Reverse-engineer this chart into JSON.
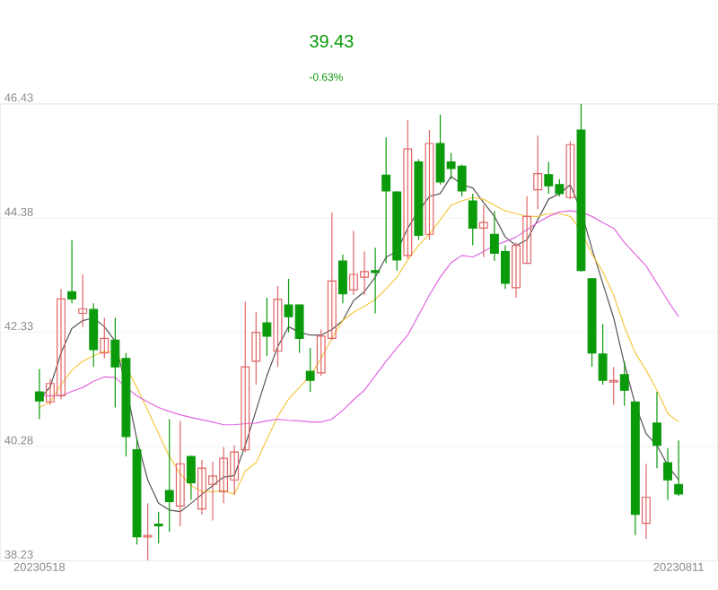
{
  "chart_data": {
    "type": "candlestick",
    "annotations": [
      "39.43",
      "-0.63%"
    ],
    "categories": [
      "20230518",
      null,
      null,
      null,
      null,
      null,
      null,
      null,
      null,
      null,
      null,
      null,
      null,
      null,
      null,
      null,
      null,
      null,
      null,
      null,
      null,
      null,
      null,
      null,
      null,
      null,
      null,
      null,
      null,
      null,
      null,
      null,
      null,
      null,
      null,
      null,
      null,
      null,
      null,
      null,
      null,
      null,
      null,
      null,
      null,
      null,
      null,
      null,
      null,
      null,
      null,
      null,
      null,
      null,
      null,
      null,
      null,
      null,
      null,
      "20230811"
    ],
    "ohlc": [
      [
        41.26,
        41.67,
        40.77,
        41.1
      ],
      [
        41.08,
        41.5,
        41.03,
        41.41
      ],
      [
        41.19,
        43.11,
        41.13,
        42.93
      ],
      [
        43.06,
        43.99,
        42.85,
        42.93
      ],
      [
        42.67,
        43.37,
        42.43,
        42.75
      ],
      [
        42.74,
        42.85,
        41.71,
        42.02
      ],
      [
        41.96,
        42.59,
        41.86,
        42.22
      ],
      [
        42.19,
        42.59,
        40.98,
        41.71
      ],
      [
        41.86,
        41.96,
        40.1,
        40.46
      ],
      [
        40.22,
        40.43,
        38.52,
        38.66
      ],
      [
        38.66,
        39.26,
        38.24,
        38.68
      ],
      [
        38.88,
        39.11,
        38.54,
        38.86
      ],
      [
        39.49,
        40.77,
        38.75,
        39.29
      ],
      [
        39.21,
        40.74,
        38.85,
        39.97
      ],
      [
        40.1,
        40.12,
        39.32,
        39.63
      ],
      [
        39.16,
        40.04,
        39.06,
        39.89
      ],
      [
        39.6,
        40.01,
        38.95,
        39.75
      ],
      [
        39.47,
        40.27,
        39.26,
        40.07
      ],
      [
        39.68,
        40.3,
        39.42,
        40.18
      ],
      [
        40.22,
        42.88,
        40.18,
        41.71
      ],
      [
        41.81,
        42.69,
        41.39,
        42.33
      ],
      [
        42.5,
        42.95,
        41.91,
        42.26
      ],
      [
        41.99,
        43.16,
        41.71,
        42.92
      ],
      [
        42.82,
        43.29,
        42.33,
        42.61
      ],
      [
        42.82,
        42.83,
        41.96,
        42.22
      ],
      [
        41.63,
        42.05,
        41.26,
        41.47
      ],
      [
        41.6,
        42.38,
        41.55,
        42.26
      ],
      [
        42.22,
        44.48,
        42.19,
        43.25
      ],
      [
        43.61,
        43.73,
        42.85,
        43.02
      ],
      [
        43.09,
        44.15,
        43.0,
        43.37
      ],
      [
        43.32,
        43.78,
        43.0,
        43.42
      ],
      [
        43.43,
        43.85,
        42.67,
        43.41
      ],
      [
        45.15,
        45.83,
        43.57,
        44.87
      ],
      [
        44.85,
        44.86,
        43.44,
        43.63
      ],
      [
        43.71,
        46.14,
        43.65,
        45.62
      ],
      [
        45.39,
        45.44,
        43.99,
        44.07
      ],
      [
        44.09,
        45.96,
        43.99,
        45.72
      ],
      [
        45.72,
        46.24,
        44.98,
        45.03
      ],
      [
        45.39,
        45.55,
        45.08,
        45.27
      ],
      [
        45.31,
        45.34,
        44.77,
        44.87
      ],
      [
        44.69,
        44.82,
        43.89,
        44.2
      ],
      [
        44.2,
        44.61,
        43.68,
        44.3
      ],
      [
        44.09,
        44.51,
        43.61,
        43.75
      ],
      [
        43.78,
        43.89,
        43.11,
        43.21
      ],
      [
        43.13,
        43.94,
        42.95,
        43.89
      ],
      [
        43.57,
        44.77,
        43.57,
        44.41
      ],
      [
        44.89,
        45.86,
        44.54,
        45.18
      ],
      [
        45.16,
        45.39,
        44.82,
        44.96
      ],
      [
        44.98,
        45.08,
        44.77,
        44.82
      ],
      [
        44.75,
        45.76,
        44.72,
        45.7
      ],
      [
        45.96,
        46.43,
        43.42,
        43.44
      ],
      [
        43.29,
        43.3,
        41.71,
        41.96
      ],
      [
        41.94,
        42.48,
        41.39,
        41.47
      ],
      [
        41.44,
        41.71,
        41.03,
        41.46
      ],
      [
        41.57,
        41.81,
        41.01,
        41.29
      ],
      [
        41.08,
        41.09,
        38.69,
        39.06
      ],
      [
        38.9,
        39.97,
        38.62,
        39.37
      ],
      [
        40.7,
        41.26,
        39.89,
        40.3
      ],
      [
        39.99,
        40.25,
        39.32,
        39.68
      ],
      [
        39.6,
        40.39,
        39.39,
        39.43
      ]
    ],
    "colors": [
      "#0a9a0a",
      "#e06666",
      "#e06666",
      "#0a9a0a",
      "#e06666",
      "#0a9a0a",
      "#e06666",
      "#0a9a0a",
      "#0a9a0a",
      "#0a9a0a",
      "#e06666",
      "#0a9a0a",
      "#0a9a0a",
      "#e06666",
      "#0a9a0a",
      "#e06666",
      "#e06666",
      "#e06666",
      "#e06666",
      "#e06666",
      "#e06666",
      "#0a9a0a",
      "#e06666",
      "#0a9a0a",
      "#0a9a0a",
      "#0a9a0a",
      "#e06666",
      "#e06666",
      "#0a9a0a",
      "#e06666",
      "#e06666",
      "#0a9a0a",
      "#0a9a0a",
      "#0a9a0a",
      "#e06666",
      "#0a9a0a",
      "#e06666",
      "#0a9a0a",
      "#0a9a0a",
      "#0a9a0a",
      "#0a9a0a",
      "#e06666",
      "#0a9a0a",
      "#0a9a0a",
      "#e06666",
      "#e06666",
      "#e06666",
      "#0a9a0a",
      "#0a9a0a",
      "#e06666",
      "#0a9a0a",
      "#0a9a0a",
      "#0a9a0a",
      "#e06666",
      "#0a9a0a",
      "#0a9a0a",
      "#e06666",
      "#0a9a0a",
      "#0a9a0a",
      "#0a9a0a"
    ],
    "series": [
      {
        "type": "line",
        "color": "#555555",
        "values": [
          41.13,
          41.35,
          41.96,
          42.4,
          42.54,
          42.59,
          42.43,
          42.17,
          41.34,
          40.41,
          39.68,
          39.26,
          39.14,
          39.11,
          39.26,
          39.42,
          39.58,
          39.73,
          39.76,
          40.3,
          40.93,
          41.55,
          42.07,
          42.43,
          42.33,
          42.28,
          42.28,
          42.38,
          42.54,
          42.9,
          43.06,
          43.32,
          43.68,
          43.78,
          44.2,
          44.51,
          44.77,
          44.82,
          45.13,
          44.98,
          44.92,
          44.66,
          44.41,
          44.04,
          43.89,
          43.99,
          44.35,
          44.72,
          44.82,
          44.98,
          44.51,
          43.83,
          43.21,
          42.59,
          41.76,
          41.03,
          40.51,
          40.3,
          39.94,
          39.68
        ]
      },
      {
        "type": "line",
        "color": "#f5c842",
        "values": [
          40.98,
          41.08,
          41.39,
          41.65,
          41.81,
          41.91,
          41.99,
          41.96,
          41.71,
          41.34,
          40.93,
          40.51,
          40.1,
          39.79,
          39.58,
          39.47,
          39.47,
          39.49,
          39.42,
          39.84,
          39.99,
          40.41,
          40.82,
          41.13,
          41.34,
          41.55,
          41.86,
          42.22,
          42.54,
          42.69,
          42.8,
          42.92,
          43.11,
          43.32,
          43.63,
          43.89,
          44.09,
          44.35,
          44.61,
          44.69,
          44.75,
          44.72,
          44.61,
          44.51,
          44.46,
          44.41,
          44.41,
          44.46,
          44.46,
          44.41,
          44.15,
          43.73,
          43.42,
          43.0,
          42.43,
          41.96,
          41.65,
          41.29,
          40.87,
          40.72
        ]
      },
      {
        "type": "line",
        "color": "#e066e0",
        "values": [
          41.19,
          41.19,
          41.19,
          41.27,
          41.34,
          41.45,
          41.53,
          41.52,
          41.34,
          41.19,
          41.08,
          40.98,
          40.91,
          40.85,
          40.8,
          40.76,
          40.72,
          40.67,
          40.67,
          40.69,
          40.7,
          40.74,
          40.77,
          40.75,
          40.74,
          40.72,
          40.72,
          40.77,
          40.93,
          41.12,
          41.29,
          41.55,
          41.81,
          42.05,
          42.28,
          42.64,
          43.0,
          43.32,
          43.58,
          43.71,
          43.68,
          43.78,
          43.89,
          43.96,
          44.04,
          44.17,
          44.3,
          44.41,
          44.49,
          44.51,
          44.49,
          44.41,
          44.3,
          44.2,
          43.94,
          43.73,
          43.52,
          43.21,
          42.9,
          42.61
        ]
      }
    ],
    "ylim": [
      38.23,
      46.43
    ],
    "yticks": [
      38.23,
      40.28,
      42.33,
      44.38,
      46.43
    ],
    "grid": "y"
  }
}
